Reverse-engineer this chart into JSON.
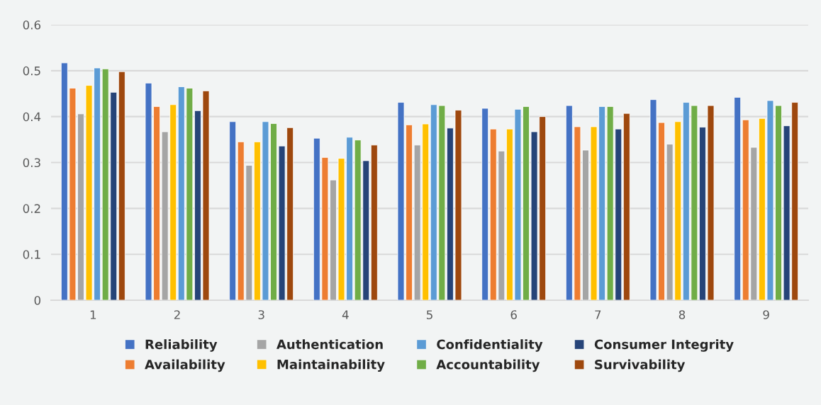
{
  "chart_data": {
    "type": "bar",
    "categories": [
      "1",
      "2",
      "3",
      "4",
      "5",
      "6",
      "7",
      "8",
      "9"
    ],
    "series": [
      {
        "name": "Reliability",
        "color": "#4472c4",
        "values": [
          0.517,
          0.473,
          0.389,
          0.353,
          0.431,
          0.418,
          0.424,
          0.437,
          0.442
        ]
      },
      {
        "name": "Availability",
        "color": "#ed7d31",
        "values": [
          0.462,
          0.422,
          0.345,
          0.311,
          0.382,
          0.373,
          0.378,
          0.387,
          0.393
        ]
      },
      {
        "name": "Authentication",
        "color": "#a5a5a5",
        "values": [
          0.406,
          0.367,
          0.294,
          0.262,
          0.338,
          0.325,
          0.327,
          0.34,
          0.333
        ]
      },
      {
        "name": "Maintainability",
        "color": "#ffc000",
        "values": [
          0.468,
          0.426,
          0.345,
          0.309,
          0.384,
          0.373,
          0.378,
          0.389,
          0.396
        ]
      },
      {
        "name": "Confidentiality",
        "color": "#5b9bd5",
        "values": [
          0.506,
          0.465,
          0.389,
          0.355,
          0.426,
          0.416,
          0.422,
          0.431,
          0.435
        ]
      },
      {
        "name": "Accountability",
        "color": "#70ad47",
        "values": [
          0.504,
          0.462,
          0.385,
          0.349,
          0.424,
          0.422,
          0.422,
          0.424,
          0.424
        ]
      },
      {
        "name": "Consumer Integrity",
        "color": "#264478",
        "values": [
          0.453,
          0.413,
          0.336,
          0.304,
          0.375,
          0.367,
          0.373,
          0.377,
          0.38
        ]
      },
      {
        "name": "Survivability",
        "color": "#9e480e",
        "values": [
          0.498,
          0.456,
          0.376,
          0.338,
          0.414,
          0.4,
          0.407,
          0.424,
          0.431
        ]
      }
    ],
    "ylim": [
      0,
      0.6
    ],
    "yticks": [
      {
        "value": 0,
        "label": "0"
      },
      0.1,
      0.2,
      0.3,
      0.4,
      0.5,
      0.6
    ],
    "grid": "y",
    "legend": "bottom"
  }
}
